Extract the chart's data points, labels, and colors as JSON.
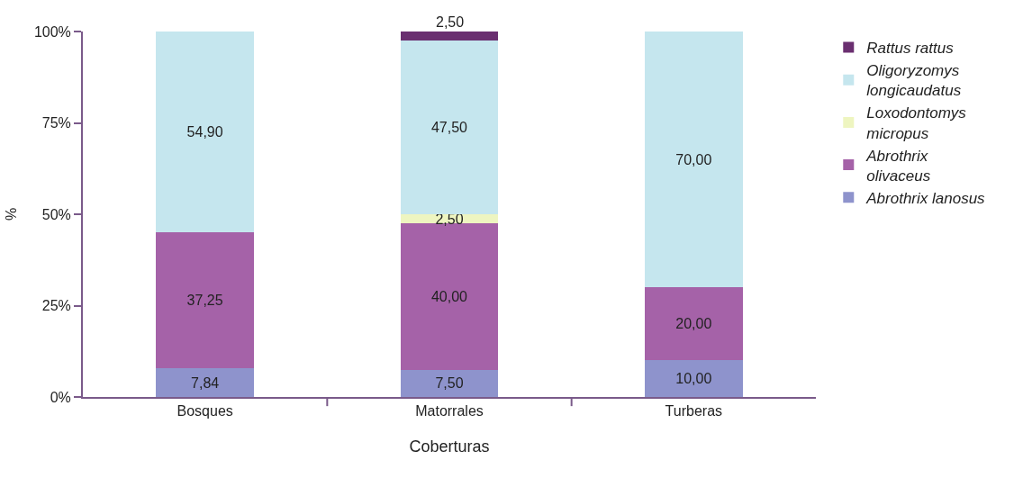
{
  "chart_data": {
    "type": "bar",
    "stacked": true,
    "xlabel": "Coberturas",
    "ylabel": "%",
    "categories": [
      "Bosques",
      "Matorrales",
      "Turberas"
    ],
    "series": [
      {
        "name": "Abrothrix lanosus",
        "color": "#8e93cc",
        "values": [
          7.84,
          7.5,
          10
        ],
        "value_labels": [
          "7,84",
          "7,50",
          "10,00"
        ]
      },
      {
        "name": "Abrothrix olivaceus",
        "color": "#a562a8",
        "values": [
          37.25,
          40,
          20
        ],
        "value_labels": [
          "37,25",
          "40,00",
          "20,00"
        ]
      },
      {
        "name": "Loxodontomys micropus",
        "color": "#eef5c0",
        "values": [
          null,
          2.5,
          null
        ],
        "value_labels": [
          null,
          "2,50",
          null
        ]
      },
      {
        "name": "Oligoryzomys longicaudatus",
        "color": "#c5e6ee",
        "values": [
          54.9,
          47.5,
          70
        ],
        "value_labels": [
          "54,90",
          "47,50",
          "70,00"
        ]
      },
      {
        "name": "Rattus rattus",
        "color": "#6a2f70",
        "values": [
          null,
          2.5,
          null
        ],
        "value_labels": [
          null,
          "2,50",
          null
        ]
      }
    ],
    "ylim": [
      0,
      100
    ],
    "yticks": [
      {
        "value": 0,
        "label": "0%"
      },
      {
        "value": 25,
        "label": "25%"
      },
      {
        "value": 50,
        "label": "50%"
      },
      {
        "value": 75,
        "label": "75%"
      },
      {
        "value": 100,
        "label": "100%"
      }
    ],
    "grid": false,
    "legend": "right"
  }
}
